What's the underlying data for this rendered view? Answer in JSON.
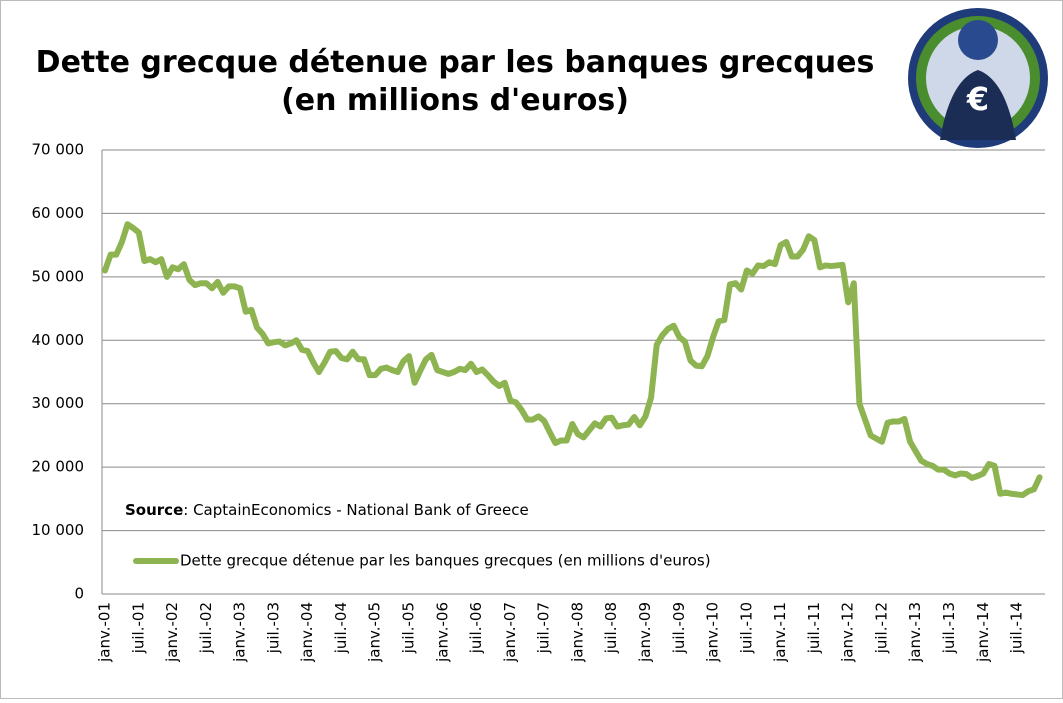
{
  "chart_data": {
    "type": "line",
    "title": [
      "Dette grecque détenue par les banques grecques",
      "(en millions d'euros)"
    ],
    "source": {
      "label": "Source",
      "text": ": CaptainEconomics - National Bank of Greece"
    },
    "ylim": [
      0,
      70000
    ],
    "yticks": [
      {
        "value": 0,
        "label": "0"
      },
      {
        "value": 10000,
        "label": "10 000"
      },
      {
        "value": 20000,
        "label": "20 000"
      },
      {
        "value": 30000,
        "label": "30 000"
      },
      {
        "value": 40000,
        "label": "40 000"
      },
      {
        "value": 50000,
        "label": "50 000"
      },
      {
        "value": 60000,
        "label": "60 000"
      },
      {
        "value": 70000,
        "label": "70 000"
      }
    ],
    "grid": true,
    "legend": "bottom-left",
    "categories": [
      "janv.-01",
      null,
      null,
      null,
      null,
      null,
      "juil.-01",
      null,
      null,
      null,
      null,
      null,
      "janv.-02",
      null,
      null,
      null,
      null,
      null,
      "juil.-02",
      null,
      null,
      null,
      null,
      null,
      "janv.-03",
      null,
      null,
      null,
      null,
      null,
      "juil.-03",
      null,
      null,
      null,
      null,
      null,
      "janv.-04",
      null,
      null,
      null,
      null,
      null,
      "juil.-04",
      null,
      null,
      null,
      null,
      null,
      "janv.-05",
      null,
      null,
      null,
      null,
      null,
      "juil.-05",
      null,
      null,
      null,
      null,
      null,
      "janv.-06",
      null,
      null,
      null,
      null,
      null,
      "juil.-06",
      null,
      null,
      null,
      null,
      null,
      "janv.-07",
      null,
      null,
      null,
      null,
      null,
      "juil.-07",
      null,
      null,
      null,
      null,
      null,
      "janv.-08",
      null,
      null,
      null,
      null,
      null,
      "juil.-08",
      null,
      null,
      null,
      null,
      null,
      "janv.-09",
      null,
      null,
      null,
      null,
      null,
      "juil.-09",
      null,
      null,
      null,
      null,
      null,
      "janv.-10",
      null,
      null,
      null,
      null,
      null,
      "juil.-10",
      null,
      null,
      null,
      null,
      null,
      "janv.-11",
      null,
      null,
      null,
      null,
      null,
      "juil.-11",
      null,
      null,
      null,
      null,
      null,
      "janv.-12",
      null,
      null,
      null,
      null,
      null,
      "juil.-12",
      null,
      null,
      null,
      null,
      null,
      "janv.-13",
      null,
      null,
      null,
      null,
      null,
      "juil.-13",
      null,
      null,
      null,
      null,
      null,
      "janv.-14",
      null,
      null,
      null,
      null,
      null,
      "juil.-14",
      null,
      null,
      null,
      null
    ],
    "series": [
      {
        "name": "Dette grecque détenue par les banques grecques (en millions d'euros)",
        "color": "#8db450",
        "values": [
          51000,
          53500,
          53500,
          55500,
          58300,
          57700,
          57000,
          52500,
          52800,
          52300,
          52800,
          50000,
          51500,
          51200,
          52000,
          49500,
          48700,
          49000,
          49000,
          48200,
          49200,
          47500,
          48500,
          48500,
          48200,
          44500,
          44800,
          42000,
          41000,
          39500,
          39700,
          39800,
          39200,
          39500,
          40000,
          38500,
          38300,
          36500,
          35000,
          36500,
          38200,
          38300,
          37200,
          37000,
          38200,
          37000,
          37000,
          34500,
          34500,
          35500,
          35700,
          35300,
          35000,
          36700,
          37500,
          33300,
          35200,
          37000,
          37700,
          35300,
          35000,
          34700,
          35000,
          35500,
          35300,
          36300,
          35000,
          35400,
          34500,
          33500,
          32800,
          33300,
          30500,
          30200,
          29000,
          27500,
          27500,
          28000,
          27300,
          25500,
          23800,
          24200,
          24200,
          26800,
          25200,
          24700,
          25800,
          26900,
          26400,
          27700,
          27800,
          26400,
          26600,
          26700,
          27900,
          26600,
          28000,
          31000,
          39300,
          40800,
          41800,
          42300,
          40500,
          39800,
          36800,
          36000,
          35900,
          37500,
          40500,
          43000,
          43200,
          48800,
          49000,
          48000,
          51000,
          50500,
          51800,
          51700,
          52300,
          52000,
          55000,
          55500,
          53200,
          53200,
          54300,
          56400,
          55800,
          51500,
          51800,
          51700,
          51800,
          51900,
          46000,
          49000,
          30000,
          27500,
          25000,
          24500,
          24000,
          27000,
          27200,
          27200,
          27600,
          24000,
          22500,
          21000,
          20500,
          20200,
          19600,
          19600,
          19000,
          18700,
          19000,
          18900,
          18300,
          18600,
          19000,
          20500,
          20200,
          15800,
          16000,
          15800,
          15700,
          15600,
          16200,
          16500,
          18400
        ]
      }
    ]
  }
}
